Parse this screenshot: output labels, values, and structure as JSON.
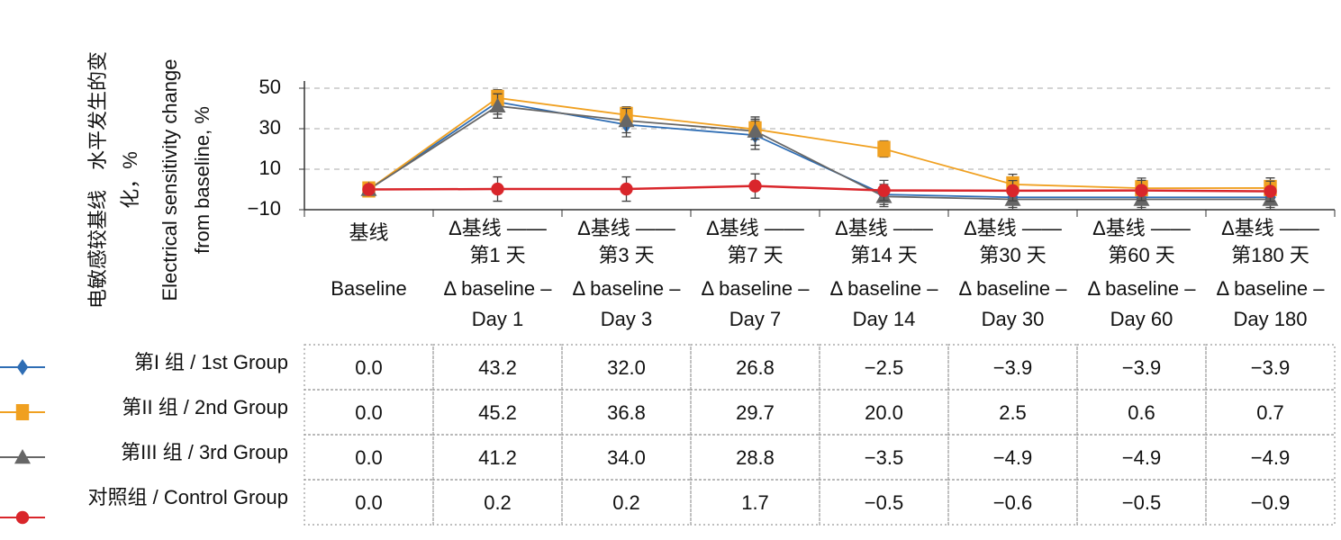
{
  "chart_data": {
    "type": "line",
    "y_label_zh": [
      "电敏感较基线　水平发生的变",
      "化，%"
    ],
    "y_label_en": [
      "Electrical sensitivity change",
      "from baseline, %"
    ],
    "categories_zh": [
      [
        "基线"
      ],
      [
        "Δ基线 ——",
        "第1 天"
      ],
      [
        "Δ基线 ——",
        "第3 天"
      ],
      [
        "Δ基线 ——",
        "第7 天"
      ],
      [
        "Δ基线 ——",
        "第14 天"
      ],
      [
        "Δ基线 ——",
        "第30 天"
      ],
      [
        "Δ基线 ——",
        "第60 天"
      ],
      [
        "Δ基线 ——",
        "第180 天"
      ]
    ],
    "categories_en": [
      [
        "Baseline"
      ],
      [
        "Δ baseline –",
        "Day 1"
      ],
      [
        "Δ baseline –",
        "Day 3"
      ],
      [
        "Δ baseline –",
        "Day 7"
      ],
      [
        "Δ baseline –",
        "Day 14"
      ],
      [
        "Δ baseline –",
        "Day 30"
      ],
      [
        "Δ baseline –",
        "Day 60"
      ],
      [
        "Δ baseline –",
        "Day 180"
      ]
    ],
    "ylim": [
      -10,
      50
    ],
    "yticks": [
      {
        "value": -10,
        "label": "−10"
      },
      10,
      30,
      50
    ],
    "grid": true,
    "series": [
      {
        "name": "第I 组 / 1st Group",
        "color": "#2e6db4",
        "marker": "diamond",
        "values": [
          0,
          43.2,
          32.0,
          26.8,
          -2.5,
          -3.9,
          -3.9,
          -3.9
        ],
        "value_labels": [
          "0.0",
          "43.2",
          "32.0",
          "26.8",
          "−2.5",
          "−3.9",
          "−3.9",
          "−3.9"
        ],
        "errors": [
          0,
          6,
          6,
          7,
          5,
          5,
          5,
          5
        ]
      },
      {
        "name": "第II 组 / 2nd Group",
        "color": "#f0a020",
        "marker": "square",
        "values": [
          0,
          45.2,
          36.8,
          29.7,
          20.0,
          2.5,
          0.6,
          0.7
        ],
        "value_labels": [
          "0.0",
          "45.2",
          "36.8",
          "29.7",
          "20.0",
          "2.5",
          "0.6",
          "0.7"
        ],
        "errors": [
          0,
          4,
          4,
          5,
          4,
          5,
          5,
          5
        ]
      },
      {
        "name": "第III 组 / 3rd Group",
        "color": "#666666",
        "marker": "triangle",
        "values": [
          0,
          41.2,
          34.0,
          28.8,
          -3.5,
          -4.9,
          -4.9,
          -4.9
        ],
        "value_labels": [
          "0.0",
          "41.2",
          "34.0",
          "28.8",
          "−3.5",
          "−4.9",
          "−4.9",
          "−4.9"
        ],
        "errors": [
          0,
          6,
          6,
          7,
          5,
          5,
          5,
          5
        ]
      },
      {
        "name": "对照组 / Control Group",
        "color": "#d9262b",
        "marker": "circle",
        "values": [
          0,
          0.2,
          0.2,
          1.7,
          -0.5,
          -0.6,
          -0.5,
          -0.9
        ],
        "value_labels": [
          "0.0",
          "0.2",
          "0.2",
          "1.7",
          "−0.5",
          "−0.6",
          "−0.5",
          "−0.9"
        ],
        "errors": [
          0,
          6,
          6,
          6,
          5,
          5,
          5,
          5
        ]
      }
    ]
  }
}
